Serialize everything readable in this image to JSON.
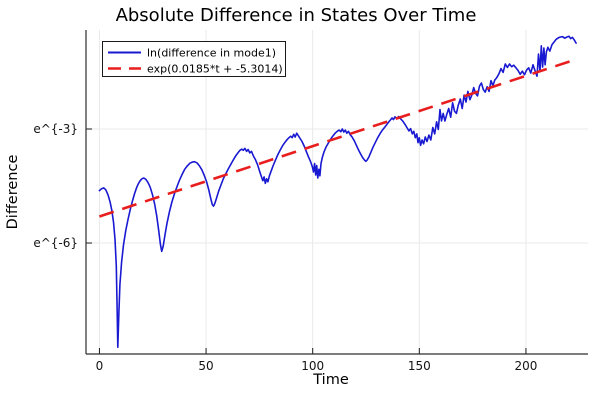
{
  "figure": {
    "background": "#ffffff"
  },
  "chart_data": {
    "type": "line",
    "title": "Absolute Difference in States Over Time",
    "xlabel": "Time",
    "ylabel": "Difference",
    "y_scale": "ln (labels rendered literally as e^{n})",
    "grid": true,
    "legend_position": "top-left",
    "xlim": [
      -6.3,
      229.1
    ],
    "ylim": [
      -8.92,
      -0.395
    ],
    "x_ticks": [
      0,
      50,
      100,
      150,
      200
    ],
    "y_ticks": [
      {
        "label": "e^{-3}",
        "value": -3
      },
      {
        "label": "e^{-6}",
        "value": -6
      }
    ],
    "colors": {
      "grid": "#e9e9e9",
      "axis": "#2d2d2d",
      "tick": "#1a1a1a",
      "series_blue": "#1919d2",
      "series_red": "#e81e1e"
    },
    "series": [
      {
        "name": "ln(difference in mode1)",
        "color": "#1919d2",
        "style": "solid",
        "width": 1.6,
        "points": [
          [
            0,
            -4.62
          ],
          [
            1,
            -4.57
          ],
          [
            2,
            -4.55
          ],
          [
            3,
            -4.6
          ],
          [
            4,
            -4.73
          ],
          [
            5,
            -4.92
          ],
          [
            5.8,
            -5.14
          ],
          [
            6.6,
            -5.45
          ],
          [
            7.3,
            -5.9
          ],
          [
            7.9,
            -6.6
          ],
          [
            8.3,
            -7.7
          ],
          [
            8.6,
            -8.74
          ],
          [
            9.1,
            -7.9
          ],
          [
            9.6,
            -7.1
          ],
          [
            10.4,
            -6.5
          ],
          [
            11.3,
            -6.05
          ],
          [
            12.3,
            -5.68
          ],
          [
            13.4,
            -5.38
          ],
          [
            14.5,
            -5.1
          ],
          [
            15.6,
            -4.87
          ],
          [
            16.6,
            -4.68
          ],
          [
            17.5,
            -4.53
          ],
          [
            18.3,
            -4.43
          ],
          [
            19.1,
            -4.36
          ],
          [
            19.9,
            -4.31
          ],
          [
            20.8,
            -4.29
          ],
          [
            21.7,
            -4.32
          ],
          [
            22.7,
            -4.4
          ],
          [
            23.8,
            -4.53
          ],
          [
            24.9,
            -4.73
          ],
          [
            25.9,
            -4.98
          ],
          [
            26.9,
            -5.3
          ],
          [
            27.8,
            -5.67
          ],
          [
            28.6,
            -6.03
          ],
          [
            29.2,
            -6.22
          ],
          [
            29.9,
            -6.08
          ],
          [
            30.7,
            -5.8
          ],
          [
            31.7,
            -5.48
          ],
          [
            32.8,
            -5.18
          ],
          [
            34,
            -4.92
          ],
          [
            35.2,
            -4.7
          ],
          [
            36.4,
            -4.51
          ],
          [
            37.6,
            -4.34
          ],
          [
            38.8,
            -4.19
          ],
          [
            40,
            -4.06
          ],
          [
            41.2,
            -3.97
          ],
          [
            42.4,
            -3.9
          ],
          [
            43.5,
            -3.87
          ],
          [
            44.6,
            -3.86
          ],
          [
            45.7,
            -3.89
          ],
          [
            46.8,
            -3.96
          ],
          [
            48,
            -4.07
          ],
          [
            49.1,
            -4.21
          ],
          [
            50.2,
            -4.38
          ],
          [
            51.2,
            -4.58
          ],
          [
            52.1,
            -4.8
          ],
          [
            52.9,
            -4.98
          ],
          [
            53.5,
            -5.03
          ],
          [
            54.1,
            -4.96
          ],
          [
            54.9,
            -4.82
          ],
          [
            55.9,
            -4.64
          ],
          [
            57,
            -4.47
          ],
          [
            58.1,
            -4.31
          ],
          [
            59.3,
            -4.17
          ],
          [
            60.5,
            -4.04
          ],
          [
            61.7,
            -3.92
          ],
          [
            62.9,
            -3.8
          ],
          [
            64,
            -3.7
          ],
          [
            65,
            -3.62
          ],
          [
            65.9,
            -3.56
          ],
          [
            66.7,
            -3.53
          ],
          [
            67.5,
            -3.56
          ],
          [
            68.2,
            -3.51
          ],
          [
            69,
            -3.59
          ],
          [
            69.7,
            -3.54
          ],
          [
            70.5,
            -3.63
          ],
          [
            71.3,
            -3.59
          ],
          [
            72.2,
            -3.71
          ],
          [
            73.2,
            -3.81
          ],
          [
            74.2,
            -3.95
          ],
          [
            75.1,
            -4.11
          ],
          [
            76,
            -4.26
          ],
          [
            76.6,
            -4.36
          ],
          [
            77.2,
            -4.26
          ],
          [
            77.8,
            -4.43
          ],
          [
            78.4,
            -4.31
          ],
          [
            79,
            -4.39
          ],
          [
            79.7,
            -4.23
          ],
          [
            80.5,
            -4.11
          ],
          [
            81.5,
            -3.96
          ],
          [
            82.6,
            -3.81
          ],
          [
            83.7,
            -3.67
          ],
          [
            84.8,
            -3.55
          ],
          [
            85.9,
            -3.44
          ],
          [
            87,
            -3.35
          ],
          [
            88,
            -3.28
          ],
          [
            88.9,
            -3.23
          ],
          [
            89.7,
            -3.19
          ],
          [
            90.4,
            -3.23
          ],
          [
            91.1,
            -3.14
          ],
          [
            91.8,
            -3.21
          ],
          [
            92.5,
            -3.11
          ],
          [
            93.3,
            -3.18
          ],
          [
            94.1,
            -3.25
          ],
          [
            95,
            -3.33
          ],
          [
            96,
            -3.45
          ],
          [
            97,
            -3.59
          ],
          [
            98,
            -3.73
          ],
          [
            99,
            -3.86
          ],
          [
            99.8,
            -3.99
          ],
          [
            100.4,
            -4.13
          ],
          [
            100.9,
            -3.91
          ],
          [
            101.4,
            -4.21
          ],
          [
            101.9,
            -3.96
          ],
          [
            102.4,
            -4.29
          ],
          [
            102.9,
            -4.06
          ],
          [
            103.4,
            -4.23
          ],
          [
            103.9,
            -3.91
          ],
          [
            104.6,
            -3.73
          ],
          [
            105.4,
            -3.59
          ],
          [
            106.3,
            -3.47
          ],
          [
            107.3,
            -3.37
          ],
          [
            108.3,
            -3.28
          ],
          [
            109.4,
            -3.19
          ],
          [
            110.5,
            -3.11
          ],
          [
            111.5,
            -3.06
          ],
          [
            112.4,
            -3.03
          ],
          [
            113.2,
            -3.07
          ],
          [
            113.9,
            -3
          ],
          [
            114.6,
            -3.08
          ],
          [
            115.3,
            -3.03
          ],
          [
            116,
            -3.11
          ],
          [
            116.8,
            -3.06
          ],
          [
            117.6,
            -3.15
          ],
          [
            118.5,
            -3.21
          ],
          [
            119.5,
            -3.31
          ],
          [
            120.5,
            -3.43
          ],
          [
            121.5,
            -3.55
          ],
          [
            122.5,
            -3.66
          ],
          [
            123.4,
            -3.75
          ],
          [
            124.2,
            -3.81
          ],
          [
            124.9,
            -3.85
          ],
          [
            125.6,
            -3.81
          ],
          [
            126.4,
            -3.73
          ],
          [
            127.3,
            -3.61
          ],
          [
            128.3,
            -3.48
          ],
          [
            129.4,
            -3.35
          ],
          [
            130.5,
            -3.23
          ],
          [
            131.6,
            -3.12
          ],
          [
            132.7,
            -3.03
          ],
          [
            133.8,
            -2.95
          ],
          [
            134.8,
            -2.88
          ],
          [
            135.7,
            -2.81
          ],
          [
            136.5,
            -2.76
          ],
          [
            137.2,
            -2.71
          ],
          [
            137.9,
            -2.75
          ],
          [
            138.6,
            -2.68
          ],
          [
            139.4,
            -2.73
          ],
          [
            140.3,
            -2.67
          ],
          [
            141.2,
            -2.73
          ],
          [
            142.2,
            -2.79
          ],
          [
            143.2,
            -2.87
          ],
          [
            144.2,
            -2.96
          ],
          [
            145.1,
            -3.05
          ],
          [
            145.9,
            -2.99
          ],
          [
            146.7,
            -3.13
          ],
          [
            147.4,
            -3.06
          ],
          [
            148.1,
            -3.23
          ],
          [
            148.8,
            -3.13
          ],
          [
            149.4,
            -3.36
          ],
          [
            150,
            -3.23
          ],
          [
            150.6,
            -3.43
          ],
          [
            151.3,
            -3.29
          ],
          [
            152,
            -3.39
          ],
          [
            152.8,
            -3.21
          ],
          [
            153.6,
            -3.33
          ],
          [
            154.5,
            -3.16
          ],
          [
            155.4,
            -3.29
          ],
          [
            156.3,
            -2.96
          ],
          [
            157.2,
            -3.13
          ],
          [
            158.1,
            -2.81
          ],
          [
            158.9,
            -3.01
          ],
          [
            159.7,
            -2.49
          ],
          [
            160.4,
            -2.79
          ],
          [
            161.2,
            -2.59
          ],
          [
            162,
            -2.79
          ],
          [
            162.9,
            -2.61
          ],
          [
            163.8,
            -2.46
          ],
          [
            164.7,
            -2.69
          ],
          [
            165.6,
            -2.31
          ],
          [
            166.5,
            -2.53
          ],
          [
            167.4,
            -2.59
          ],
          [
            168.3,
            -2.37
          ],
          [
            169.2,
            -2.21
          ],
          [
            170.1,
            -2.46
          ],
          [
            171,
            -2.11
          ],
          [
            171.9,
            -2.29
          ],
          [
            172.8,
            -2.01
          ],
          [
            173.7,
            -2.23
          ],
          [
            174.6,
            -2.11
          ],
          [
            175.5,
            -1.91
          ],
          [
            176.4,
            -2.06
          ],
          [
            177.3,
            -2.13
          ],
          [
            178.2,
            -1.87
          ],
          [
            179.1,
            -1.79
          ],
          [
            180,
            -1.96
          ],
          [
            180.9,
            -2.03
          ],
          [
            181.8,
            -1.89
          ],
          [
            182.7,
            -2.01
          ],
          [
            183.6,
            -1.73
          ],
          [
            184.5,
            -1.86
          ],
          [
            185.4,
            -1.71
          ],
          [
            186.3,
            -1.65
          ],
          [
            187.3,
            -1.55
          ],
          [
            188.3,
            -1.41
          ],
          [
            189.3,
            -1.51
          ],
          [
            190.3,
            -1.29
          ],
          [
            191.3,
            -1.38
          ],
          [
            192.3,
            -1.29
          ],
          [
            193.3,
            -1.36
          ],
          [
            194.3,
            -1.32
          ],
          [
            195.3,
            -1.39
          ],
          [
            196.3,
            -1.46
          ],
          [
            197.3,
            -1.56
          ],
          [
            198.3,
            -1.48
          ],
          [
            199.3,
            -1.57
          ],
          [
            200.3,
            -1.45
          ],
          [
            201.3,
            -1.39
          ],
          [
            202.3,
            -1.53
          ],
          [
            203.3,
            -1.31
          ],
          [
            204.3,
            -1.47
          ],
          [
            205.2,
            -1.61
          ],
          [
            205.9,
            -1.03
          ],
          [
            206.6,
            -1.49
          ],
          [
            207.2,
            -0.81
          ],
          [
            207.8,
            -1.37
          ],
          [
            208.4,
            -0.87
          ],
          [
            209,
            -1.31
          ],
          [
            209.6,
            -0.97
          ],
          [
            210.3,
            -0.85
          ],
          [
            211.2,
            -0.95
          ],
          [
            212.2,
            -0.78
          ],
          [
            213.2,
            -0.71
          ],
          [
            214.2,
            -0.64
          ],
          [
            215.2,
            -0.6
          ],
          [
            216.2,
            -0.58
          ],
          [
            217.2,
            -0.57
          ],
          [
            218.2,
            -0.61
          ],
          [
            219.2,
            -0.58
          ],
          [
            220.2,
            -0.56
          ],
          [
            221,
            -0.62
          ],
          [
            221.8,
            -0.59
          ],
          [
            222.6,
            -0.65
          ],
          [
            223.5,
            -0.74
          ]
        ]
      },
      {
        "name": "exp(0.0185*t + -5.3014)",
        "color": "#e81e1e",
        "style": "dashed",
        "width": 2.6,
        "slope": 0.0185,
        "intercept": -5.3014,
        "t_range": [
          0,
          222
        ]
      }
    ]
  }
}
